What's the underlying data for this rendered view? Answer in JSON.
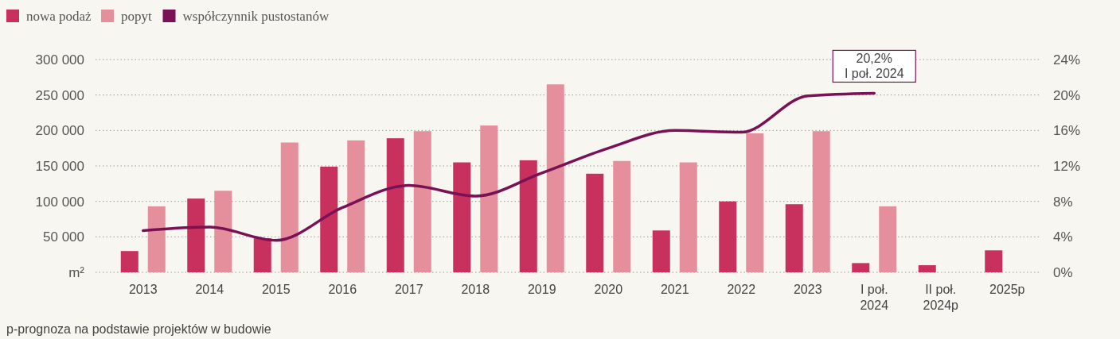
{
  "chart_data": {
    "type": "bar",
    "categories": [
      "2013",
      "2014",
      "2015",
      "2016",
      "2017",
      "2018",
      "2019",
      "2020",
      "2021",
      "2022",
      "2023",
      "I poł. 2024",
      "II poł. 2024p",
      "2025p"
    ],
    "series": [
      {
        "name": "nowa podaż",
        "color": "#c8305e",
        "values": [
          30000,
          104000,
          48000,
          149000,
          189000,
          155000,
          158000,
          139000,
          59000,
          100000,
          96000,
          13000,
          10000,
          31000
        ]
      },
      {
        "name": "popyt",
        "color": "#e58f9d",
        "values": [
          93000,
          115000,
          183000,
          186000,
          199000,
          207000,
          265000,
          157000,
          155000,
          196000,
          199000,
          93000,
          null,
          null
        ]
      },
      {
        "name": "współczynnik pustostanów",
        "type": "line",
        "axis": "y2",
        "color": "#7a1155",
        "values": [
          4.7,
          5.1,
          3.6,
          7.3,
          9.8,
          8.6,
          11.2,
          14,
          16,
          15.8,
          19.9,
          20.2,
          null,
          null
        ]
      }
    ],
    "ylabel": "m²",
    "ylim": [
      0,
      300000
    ],
    "yticks": [
      {
        "value": 0,
        "label": null
      },
      {
        "value": 50000,
        "label": "50 000"
      },
      {
        "value": 100000,
        "label": "100 000"
      },
      {
        "value": 150000,
        "label": "150 000"
      },
      {
        "value": 200000,
        "label": "200 000"
      },
      {
        "value": 250000,
        "label": "250 000"
      },
      {
        "value": 300000,
        "label": "300 000"
      }
    ],
    "y2lim": [
      0,
      24
    ],
    "y2ticks": [
      {
        "value": 0,
        "label": "0%"
      },
      {
        "value": 4,
        "label": "4%"
      },
      {
        "value": 8,
        "label": "8%"
      },
      {
        "value": 12,
        "label": "12%"
      },
      {
        "value": 16,
        "label": "16%"
      },
      {
        "value": 20,
        "label": "20%"
      },
      {
        "value": 24,
        "label": "24%"
      }
    ],
    "grid": "y",
    "legend": "top left",
    "line_style": "solid",
    "marker": "none",
    "annotations": [
      "20,2%\nI poł. 2024",
      "p-prognoza na podstawie projektów w budowie"
    ]
  }
}
